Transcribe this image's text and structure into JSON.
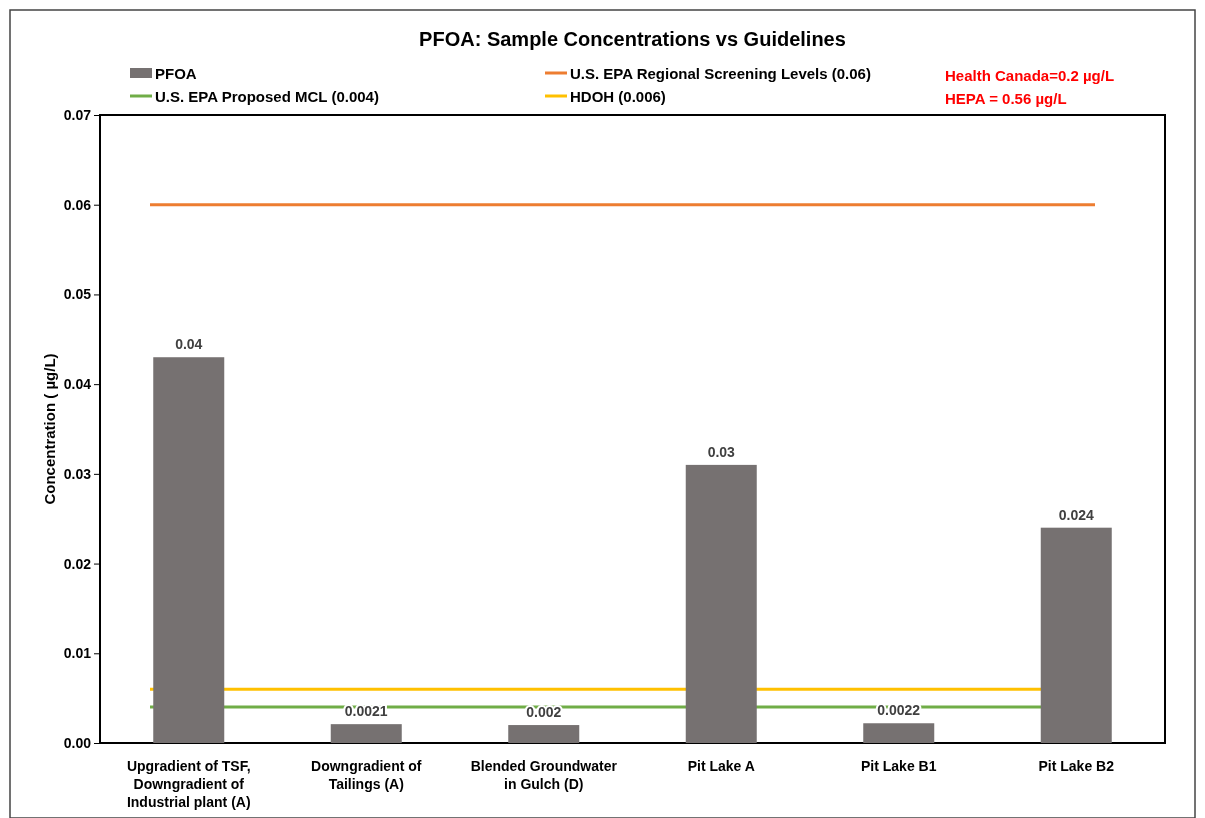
{
  "chart_data": {
    "type": "bar",
    "title": "PFOA: Sample Concentrations vs Guidelines",
    "ylabel": "Concentration ( µg/L)",
    "categories": [
      "Upgradient of TSF, Downgradient of Industrial plant (A)",
      "Downgradient of Tailings (A)",
      "Blended Groundwater in Gulch (D)",
      "Pit Lake A",
      "Pit Lake B1",
      "Pit Lake B2"
    ],
    "series": [
      {
        "name": "PFOA",
        "color": "#767171",
        "values": [
          0.043,
          0.0021,
          0.002,
          0.031,
          0.0022,
          0.024
        ],
        "value_labels": [
          "0.04",
          "0.0021",
          "0.002",
          "0.03",
          "0.0022",
          "0.024"
        ]
      }
    ],
    "ref_lines": [
      {
        "axis": "y",
        "value": 0.06,
        "label": "U.S. EPA Regional Screening Levels (0.06)",
        "color": "#ed7d31"
      },
      {
        "axis": "y",
        "value": 0.004,
        "label": "U.S. EPA Proposed MCL (0.004)",
        "color": "#70ad47"
      },
      {
        "axis": "y",
        "value": 0.006,
        "label": "HDOH (0.006)",
        "color": "#ffc000"
      }
    ],
    "annotations": [
      "Health Canada=0.2 µg/L",
      "HEPA = 0.56 µg/L"
    ],
    "ylim": [
      0,
      0.07
    ],
    "yticks": [
      {
        "value": 0,
        "label": "0.00"
      },
      0.01,
      0.02,
      0.03,
      0.04,
      0.05,
      0.06,
      0.07
    ],
    "legend": "top"
  }
}
